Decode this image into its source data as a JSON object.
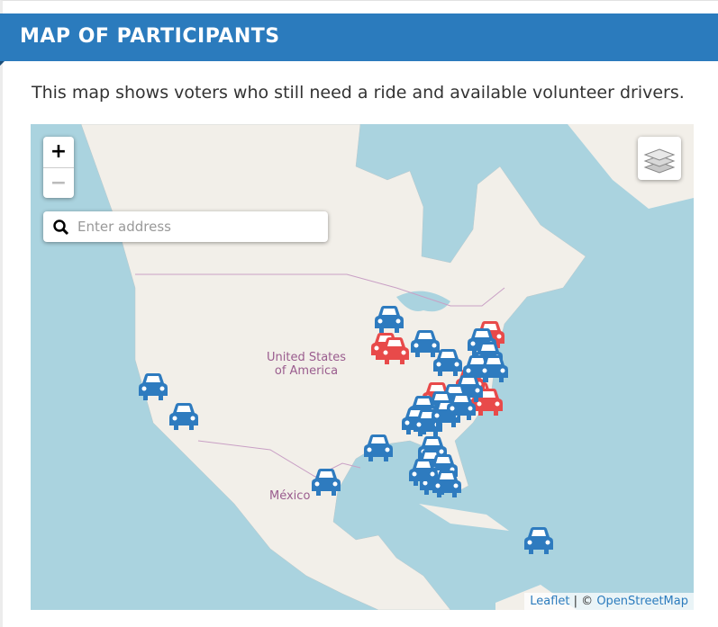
{
  "header": {
    "title": "MAP OF PARTICIPANTS"
  },
  "description": "This map shows voters who still need a ride and available volunteer drivers.",
  "map": {
    "zoom_in": "+",
    "zoom_out": "−",
    "search_placeholder": "Enter address",
    "labels": [
      "United States",
      "of America",
      "México"
    ],
    "attribution": {
      "leaflet": "Leaflet",
      "separator": "| ©",
      "osm": "OpenStreetMap"
    }
  }
}
